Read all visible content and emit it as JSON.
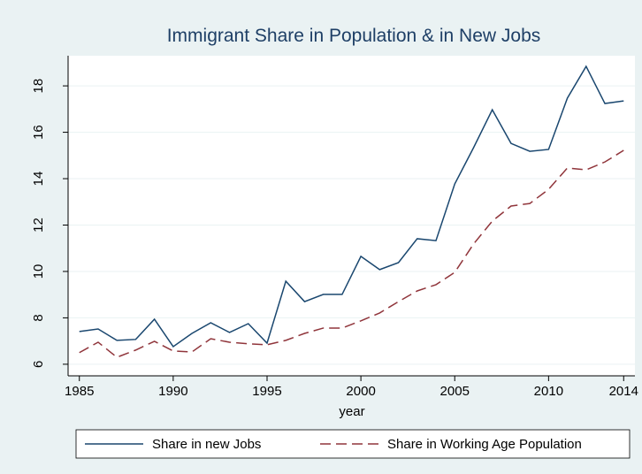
{
  "chart_data": {
    "type": "line",
    "title": "Immigrant Share in Population & in New Jobs",
    "x_label": "year",
    "x": [
      1985,
      1986,
      1987,
      1988,
      1989,
      1990,
      1991,
      1992,
      1993,
      1994,
      1995,
      1996,
      1997,
      1998,
      1999,
      2000,
      2001,
      2002,
      2003,
      2004,
      2005,
      2006,
      2007,
      2008,
      2009,
      2010,
      2011,
      2012,
      2013,
      2014
    ],
    "series": [
      {
        "name": "Share in new Jobs",
        "color": "#1a476f",
        "dash": "solid",
        "values": [
          7.41,
          7.52,
          7.03,
          7.07,
          7.94,
          6.76,
          7.33,
          7.79,
          7.37,
          7.75,
          6.91,
          9.58,
          8.7,
          9.01,
          9.01,
          10.65,
          10.08,
          10.38,
          11.41,
          11.33,
          13.77,
          15.33,
          16.97,
          15.52,
          15.18,
          15.26,
          17.47,
          18.84,
          17.24,
          17.35
        ]
      },
      {
        "name": "Share in Working Age Population",
        "color": "#90353b",
        "dash": "dashed",
        "values": [
          6.5,
          6.95,
          6.3,
          6.61,
          6.99,
          6.57,
          6.53,
          7.1,
          6.95,
          6.88,
          6.84,
          7.03,
          7.33,
          7.56,
          7.56,
          7.87,
          8.21,
          8.7,
          9.16,
          9.43,
          9.96,
          11.18,
          12.17,
          12.82,
          12.93,
          13.54,
          14.46,
          14.38,
          14.72,
          15.22
        ]
      }
    ],
    "xlim": [
      1984.4,
      2014.6
    ],
    "xticks": [
      1985,
      1990,
      1995,
      2000,
      2005,
      2010,
      2014
    ],
    "ylim": [
      5.5,
      19.3
    ],
    "yticks": [
      6,
      8,
      10,
      12,
      14,
      16,
      18
    ],
    "grid": true,
    "legend": "bottom"
  }
}
